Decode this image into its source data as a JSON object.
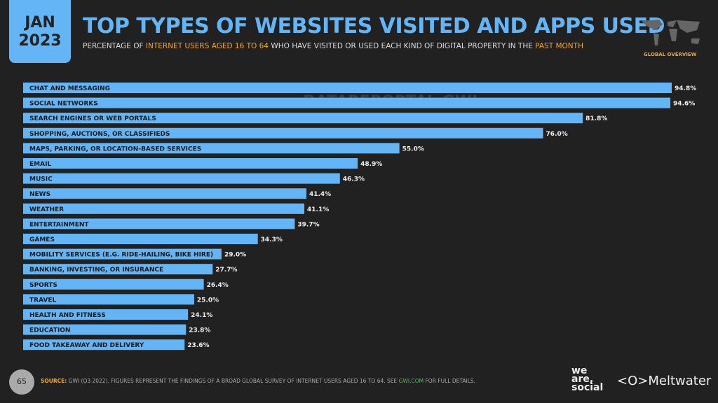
{
  "header": {
    "month": "JAN",
    "year": "2023",
    "title": "TOP TYPES OF WEBSITES VISITED AND APPS USED",
    "subtitle_parts": [
      "PERCENTAGE OF ",
      "INTERNET USERS AGED 16 TO 64",
      " WHO HAVE VISITED OR USED EACH KIND OF DIGITAL PROPERTY IN THE ",
      "PAST MONTH"
    ],
    "badge": "GLOBAL OVERVIEW",
    "map_icon": "world-map-icon"
  },
  "watermark": "DATAREPORTAL  GWI.",
  "colors": {
    "bar": "#63b5f6",
    "accent": "#f5a623",
    "background": "#212121"
  },
  "chart_data": {
    "type": "bar",
    "orientation": "horizontal",
    "xlim": [
      0,
      100
    ],
    "grid": false,
    "unit": "%",
    "categories": [
      "CHAT AND MESSAGING",
      "SOCIAL NETWORKS",
      "SEARCH ENGINES OR WEB PORTALS",
      "SHOPPING, AUCTIONS, OR CLASSIFIEDS",
      "MAPS, PARKING, OR LOCATION-BASED SERVICES",
      "EMAIL",
      "MUSIC",
      "NEWS",
      "WEATHER",
      "ENTERTAINMENT",
      "GAMES",
      "MOBILITY SERVICES (E.G. RIDE-HAILING, BIKE HIRE)",
      "BANKING, INVESTING, OR INSURANCE",
      "SPORTS",
      "TRAVEL",
      "HEALTH AND FITNESS",
      "EDUCATION",
      "FOOD TAKEAWAY AND DELIVERY"
    ],
    "values": [
      94.8,
      94.6,
      81.8,
      76.0,
      55.0,
      48.9,
      46.3,
      41.4,
      41.1,
      39.7,
      34.3,
      29.0,
      27.7,
      26.4,
      25.0,
      24.1,
      23.8,
      23.6
    ],
    "labels": [
      "94.8%",
      "94.6%",
      "81.8%",
      "76.0%",
      "55.0%",
      "48.9%",
      "46.3%",
      "41.4%",
      "41.1%",
      "39.7%",
      "34.3%",
      "29.0%",
      "27.7%",
      "26.4%",
      "25.0%",
      "24.1%",
      "23.8%",
      "23.6%"
    ]
  },
  "footer": {
    "page": "65",
    "source_label": "SOURCE:",
    "source_text": " GWI (Q3 2022). FIGURES REPRESENT THE FINDINGS OF A BROAD GLOBAL SURVEY OF INTERNET USERS AGED 16 TO 64. SEE ",
    "source_link": "GWI.COM",
    "source_end": " FOR FULL DETAILS.",
    "logo1": "we are social",
    "logo2": "Meltwater"
  }
}
